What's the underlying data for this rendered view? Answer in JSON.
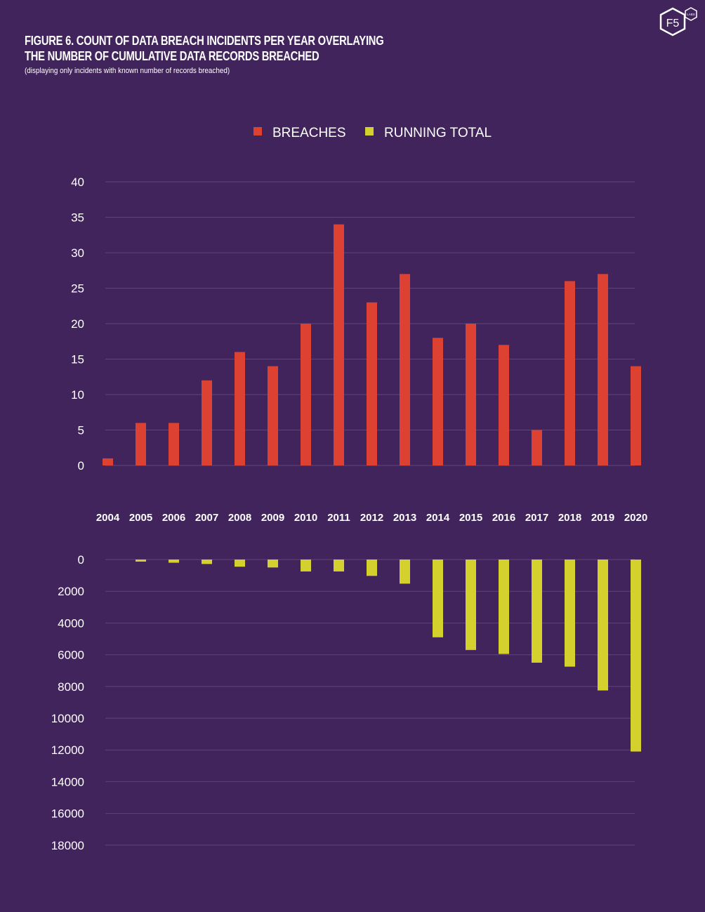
{
  "header": {
    "title_line1": "FIGURE 6. COUNT OF DATA BREACH INCIDENTS PER YEAR OVERLAYING",
    "title_line2": "THE NUMBER OF CUMULATIVE DATA RECORDS BREACHED",
    "subtitle": "(displaying only incidents with known number of records breached)"
  },
  "logo": {
    "text": "F5",
    "badge": "LABS"
  },
  "colors": {
    "background": "#42245c",
    "breaches": "#dd4132",
    "running_total": "#d4d12f",
    "grid": "#5f4478"
  },
  "legend": [
    {
      "label": "BREACHES",
      "color": "#dd4132"
    },
    {
      "label": "RUNNING TOTAL",
      "color": "#d4d12f"
    }
  ],
  "chart_data": {
    "type": "bar",
    "categories": [
      "2004",
      "2005",
      "2006",
      "2007",
      "2008",
      "2009",
      "2010",
      "2011",
      "2012",
      "2013",
      "2014",
      "2015",
      "2016",
      "2017",
      "2018",
      "2019",
      "2020"
    ],
    "series": [
      {
        "name": "BREACHES",
        "values": [
          1,
          6,
          6,
          12,
          16,
          14,
          20,
          34,
          23,
          27,
          18,
          20,
          17,
          5,
          26,
          27,
          14
        ]
      },
      {
        "name": "RUNNING TOTAL",
        "values": [
          0,
          130,
          200,
          280,
          450,
          500,
          750,
          750,
          1030,
          1520,
          4900,
          5700,
          5950,
          6500,
          6750,
          8250,
          12100
        ]
      }
    ],
    "top_axis": {
      "ylim": [
        0,
        40
      ],
      "ticks": [
        0,
        5,
        10,
        15,
        20,
        25,
        30,
        35,
        40
      ]
    },
    "bottom_axis": {
      "ylim": [
        0,
        18000
      ],
      "ticks": [
        0,
        2000,
        4000,
        6000,
        8000,
        10000,
        12000,
        14000,
        16000,
        18000
      ],
      "direction": "downward"
    },
    "legend_position": "top-center",
    "grid": true
  }
}
